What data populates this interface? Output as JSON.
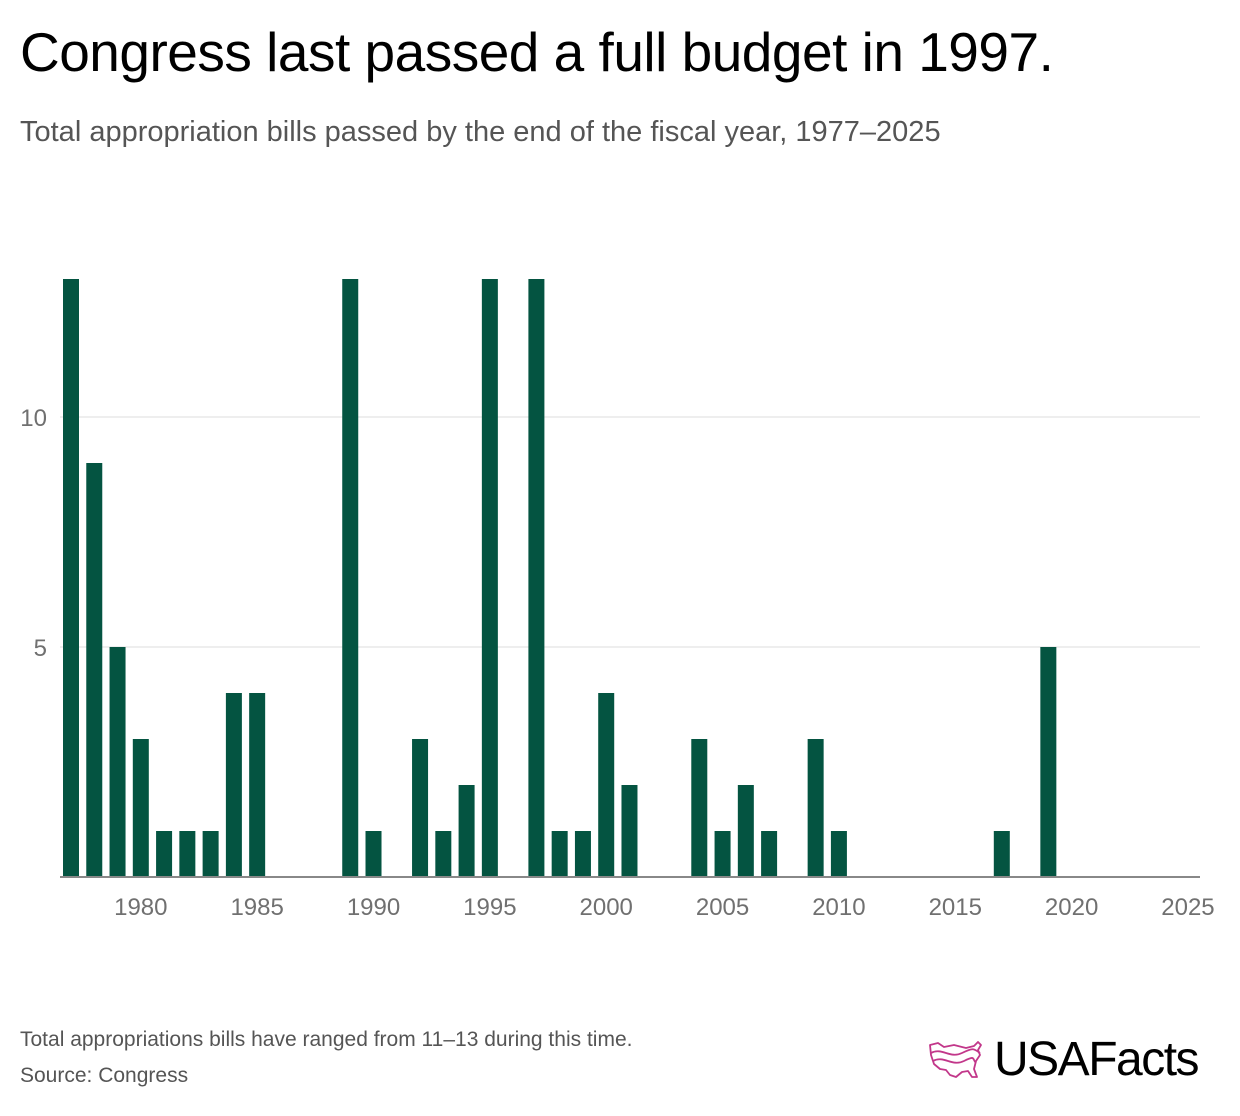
{
  "header": {
    "title": "Congress last passed a full budget in 1997.",
    "subtitle": "Total appropriation bills passed by the end of the fiscal year, 1977–2025"
  },
  "footer": {
    "note": "Total appropriations bills have ranged from 11–13 during this time.",
    "source": "Source: Congress",
    "logo_text": "USAFacts",
    "logo_icon": "usa-map-icon",
    "logo_color": "#c2378a"
  },
  "colors": {
    "bar": "#045441",
    "grid": "#dddddd",
    "axis": "#888888"
  },
  "chart_data": {
    "type": "bar",
    "title": "Congress last passed a full budget in 1997.",
    "subtitle": "Total appropriation bills passed by the end of the fiscal year, 1977–2025",
    "xlabel": "",
    "ylabel": "",
    "x": [
      1977,
      1978,
      1979,
      1980,
      1981,
      1982,
      1983,
      1984,
      1985,
      1986,
      1987,
      1988,
      1989,
      1990,
      1991,
      1992,
      1993,
      1994,
      1995,
      1996,
      1997,
      1998,
      1999,
      2000,
      2001,
      2002,
      2003,
      2004,
      2005,
      2006,
      2007,
      2008,
      2009,
      2010,
      2011,
      2012,
      2013,
      2014,
      2015,
      2016,
      2017,
      2018,
      2019,
      2020,
      2021,
      2022,
      2023,
      2024,
      2025
    ],
    "values": [
      13,
      9,
      5,
      3,
      1,
      1,
      1,
      4,
      4,
      0,
      0,
      0,
      13,
      1,
      0,
      3,
      1,
      2,
      13,
      0,
      13,
      1,
      1,
      4,
      2,
      0,
      0,
      3,
      1,
      2,
      1,
      0,
      3,
      1,
      0,
      0,
      0,
      0,
      0,
      0,
      1,
      0,
      5,
      0,
      0,
      0,
      0,
      0,
      0
    ],
    "xticks": [
      "1980",
      "1985",
      "1990",
      "1995",
      "2000",
      "2005",
      "2010",
      "2015",
      "2020",
      "2025"
    ],
    "yticks": [
      "5",
      "10"
    ],
    "ylim": [
      0,
      13
    ],
    "grid": true,
    "legend": "none"
  }
}
